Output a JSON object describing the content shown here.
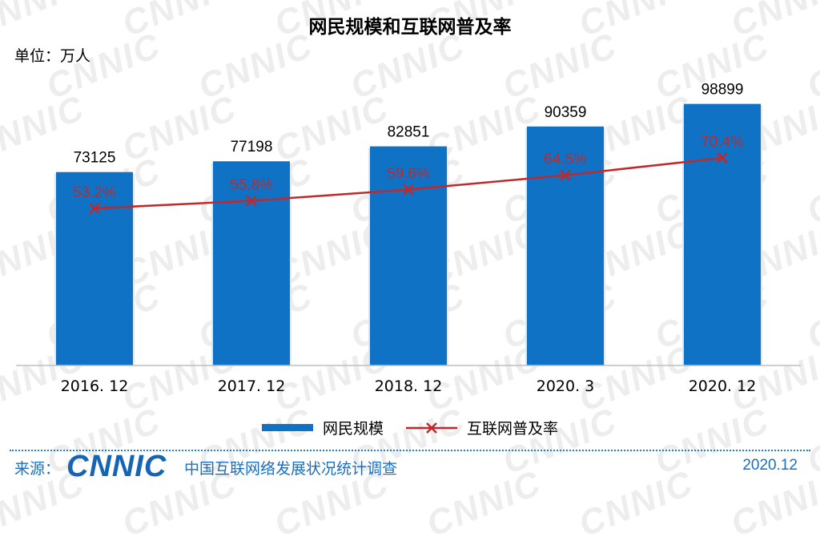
{
  "watermark": "CNNIC",
  "unit": "单位：万人",
  "legend": {
    "bar_label": "网民规模",
    "line_label": "互联网普及率"
  },
  "footer": {
    "source_label": "来源：",
    "logo_text": "CNNIC",
    "org": "中国互联网络发展状况统计调查",
    "date": "2020.12"
  },
  "colors": {
    "bar": "#1072c5",
    "line": "#c0292b",
    "bar_label_text": "#000000",
    "line_label_text": "#c0292b"
  },
  "chart_data": {
    "type": "bar",
    "title": "网民规模和互联网普及率",
    "categories": [
      "2016. 12",
      "2017. 12",
      "2018. 12",
      "2020. 3",
      "2020. 12"
    ],
    "series": [
      {
        "name": "网民规模",
        "type": "bar",
        "values": [
          73125,
          77198,
          82851,
          90359,
          98899
        ],
        "labels": [
          "73125",
          "77198",
          "82851",
          "90359",
          "98899"
        ]
      },
      {
        "name": "互联网普及率",
        "type": "line",
        "values": [
          53.2,
          55.8,
          59.6,
          64.5,
          70.4
        ],
        "labels": [
          "53.2%",
          "55.8%",
          "59.6%",
          "64.5%",
          "70.4%"
        ]
      }
    ],
    "ylim": [
      0,
      100000
    ],
    "grid": false,
    "legend_position": "bottom"
  }
}
